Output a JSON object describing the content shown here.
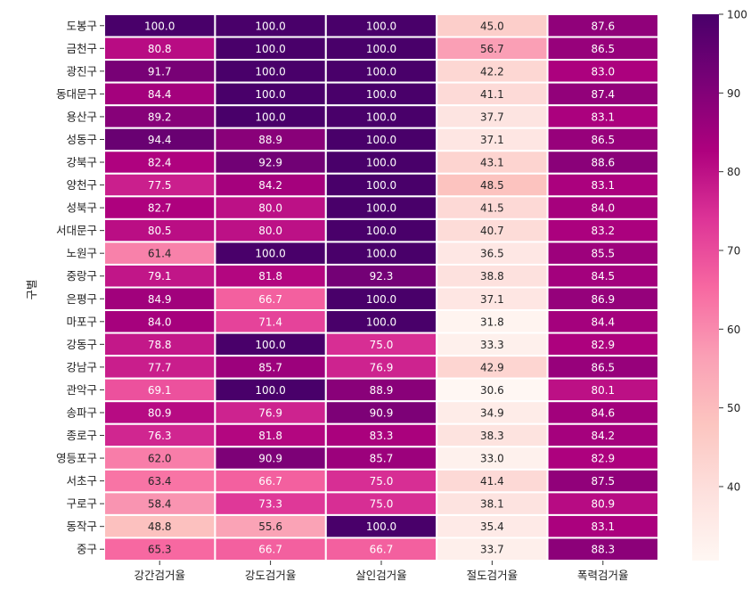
{
  "chart_data": {
    "type": "heatmap",
    "title": "",
    "xlabel": "",
    "ylabel": "구별",
    "columns": [
      "강간검거율",
      "강도검거율",
      "살인검거율",
      "절도검거율",
      "폭력검거율"
    ],
    "rows": [
      "도봉구",
      "금천구",
      "광진구",
      "동대문구",
      "용산구",
      "성동구",
      "강북구",
      "양천구",
      "성북구",
      "서대문구",
      "노원구",
      "중랑구",
      "은평구",
      "마포구",
      "강동구",
      "강남구",
      "관악구",
      "송파구",
      "종로구",
      "영등포구",
      "서초구",
      "구로구",
      "동작구",
      "중구"
    ],
    "values": [
      [
        100.0,
        100.0,
        100.0,
        45.0,
        87.6
      ],
      [
        80.8,
        100.0,
        100.0,
        56.7,
        86.5
      ],
      [
        91.7,
        100.0,
        100.0,
        42.2,
        83.0
      ],
      [
        84.4,
        100.0,
        100.0,
        41.1,
        87.4
      ],
      [
        89.2,
        100.0,
        100.0,
        37.7,
        83.1
      ],
      [
        94.4,
        88.9,
        100.0,
        37.1,
        86.5
      ],
      [
        82.4,
        92.9,
        100.0,
        43.1,
        88.6
      ],
      [
        77.5,
        84.2,
        100.0,
        48.5,
        83.1
      ],
      [
        82.7,
        80.0,
        100.0,
        41.5,
        84.0
      ],
      [
        80.5,
        80.0,
        100.0,
        40.7,
        83.2
      ],
      [
        61.4,
        100.0,
        100.0,
        36.5,
        85.5
      ],
      [
        79.1,
        81.8,
        92.3,
        38.8,
        84.5
      ],
      [
        84.9,
        66.7,
        100.0,
        37.1,
        86.9
      ],
      [
        84.0,
        71.4,
        100.0,
        31.8,
        84.4
      ],
      [
        78.8,
        100.0,
        75.0,
        33.3,
        82.9
      ],
      [
        77.7,
        85.7,
        76.9,
        42.9,
        86.5
      ],
      [
        69.1,
        100.0,
        88.9,
        30.6,
        80.1
      ],
      [
        80.9,
        76.9,
        90.9,
        34.9,
        84.6
      ],
      [
        76.3,
        81.8,
        83.3,
        38.3,
        84.2
      ],
      [
        62.0,
        90.9,
        85.7,
        33.0,
        82.9
      ],
      [
        63.4,
        66.7,
        75.0,
        41.4,
        87.5
      ],
      [
        58.4,
        73.3,
        75.0,
        38.1,
        80.9
      ],
      [
        48.8,
        55.6,
        100.0,
        35.4,
        83.1
      ],
      [
        65.3,
        66.7,
        66.7,
        33.7,
        88.3
      ]
    ],
    "vmin": 30.6,
    "vmax": 100.0,
    "colormap": "RdPu",
    "colorbar_ticks": [
      40,
      50,
      60,
      70,
      80,
      90,
      100
    ],
    "value_format": "0.0",
    "colors": {
      "low": "#fff7f3",
      "mid": "#f768a1",
      "high": "#49006a",
      "gridline": "#ffffff"
    }
  }
}
